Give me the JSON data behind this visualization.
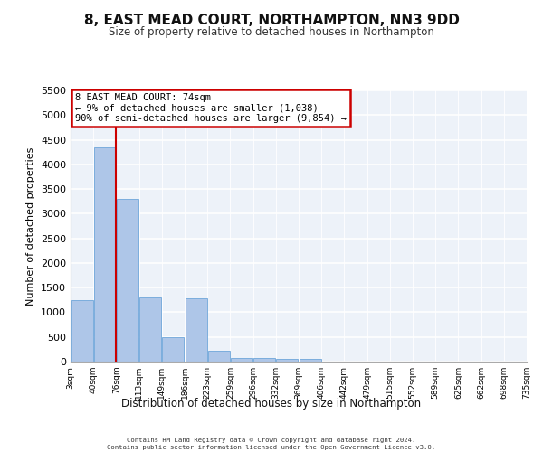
{
  "title": "8, EAST MEAD COURT, NORTHAMPTON, NN3 9DD",
  "subtitle": "Size of property relative to detached houses in Northampton",
  "xlabel": "Distribution of detached houses by size in Northampton",
  "ylabel": "Number of detached properties",
  "footer_line1": "Contains HM Land Registry data © Crown copyright and database right 2024.",
  "footer_line2": "Contains public sector information licensed under the Open Government Licence v3.0.",
  "tick_labels": [
    "3sqm",
    "40sqm",
    "76sqm",
    "113sqm",
    "149sqm",
    "186sqm",
    "223sqm",
    "259sqm",
    "296sqm",
    "332sqm",
    "369sqm",
    "406sqm",
    "442sqm",
    "479sqm",
    "515sqm",
    "552sqm",
    "589sqm",
    "625sqm",
    "662sqm",
    "698sqm",
    "735sqm"
  ],
  "bar_heights": [
    1250,
    4350,
    3300,
    1300,
    490,
    1280,
    220,
    80,
    80,
    60,
    60,
    0,
    0,
    0,
    0,
    0,
    0,
    0,
    0,
    0
  ],
  "bar_color": "#aec6e8",
  "bar_edge_color": "#5b9bd5",
  "ylim": [
    0,
    5500
  ],
  "yticks": [
    0,
    500,
    1000,
    1500,
    2000,
    2500,
    3000,
    3500,
    4000,
    4500,
    5000,
    5500
  ],
  "property_line_x": 1.5,
  "property_line_color": "#cc0000",
  "annotation_text": "8 EAST MEAD COURT: 74sqm\n← 9% of detached houses are smaller (1,038)\n90% of semi-detached houses are larger (9,854) →",
  "annotation_box_color": "#cc0000",
  "background_color": "#edf2f9",
  "grid_color": "#ffffff"
}
